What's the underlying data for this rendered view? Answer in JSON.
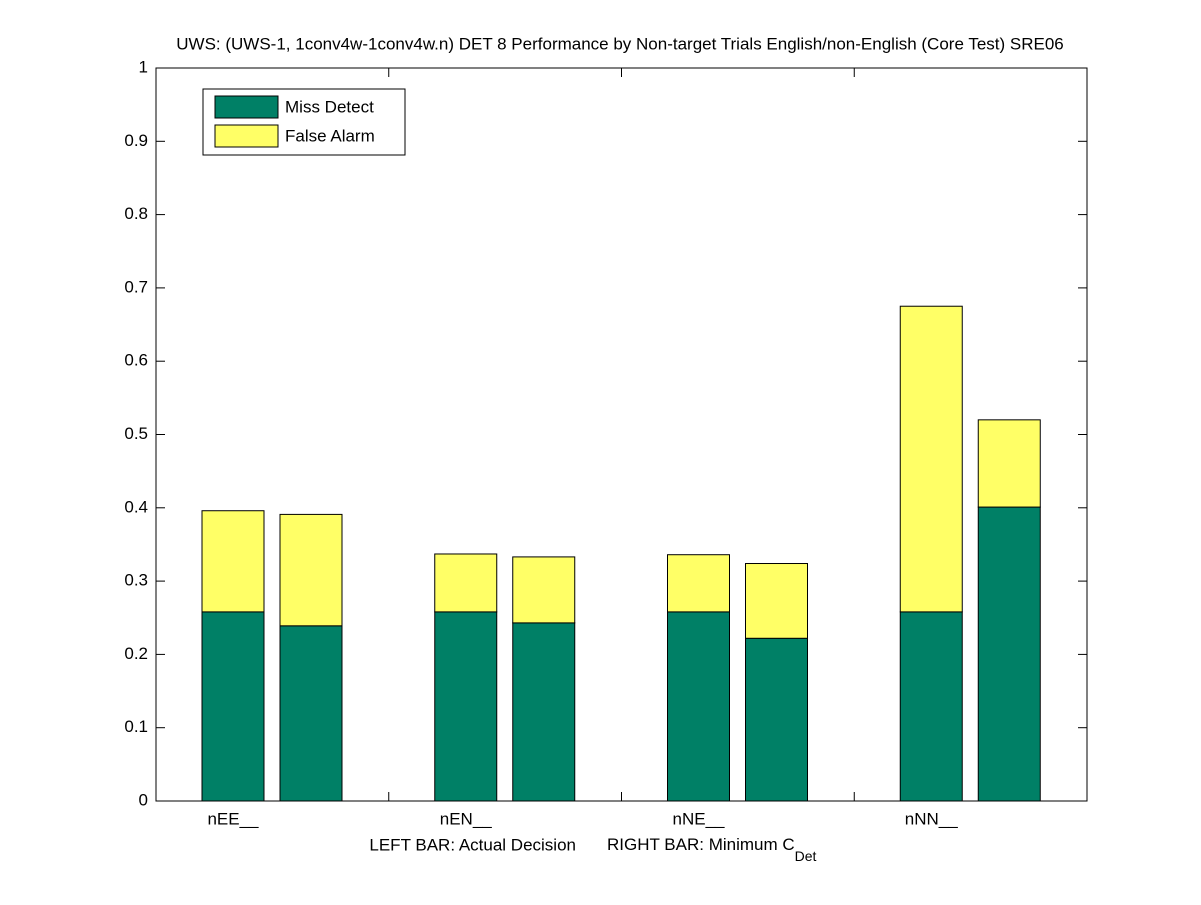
{
  "chart_data": {
    "type": "grouped-stacked-bar",
    "title": "UWS: (UWS-1, 1conv4w-1conv4w.n) DET 8 Performance by Non-target Trials English/non-English (Core Test) SRE06",
    "categories": [
      "nEE__",
      "nEN__",
      "nNE__",
      "nNN__"
    ],
    "xlabel": [
      "LEFT BAR: Actual Decision",
      "RIGHT BAR: Minimum C",
      "Det"
    ],
    "series": [
      {
        "name": "Miss Detect",
        "color": "#008066",
        "values": [
          [
            0.258,
            0.239
          ],
          [
            0.258,
            0.243
          ],
          [
            0.258,
            0.222
          ],
          [
            0.258,
            0.401
          ]
        ]
      },
      {
        "name": "False Alarm",
        "color": "#ffff66",
        "values": [
          [
            0.138,
            0.152
          ],
          [
            0.079,
            0.09
          ],
          [
            0.078,
            0.102
          ],
          [
            0.417,
            0.119
          ]
        ]
      }
    ],
    "ylim": [
      0,
      1
    ],
    "yticks": [
      0,
      0.1,
      0.2,
      0.3,
      0.4,
      0.5,
      0.6,
      0.7,
      0.8,
      0.9,
      1
    ],
    "legend": "upper left"
  }
}
